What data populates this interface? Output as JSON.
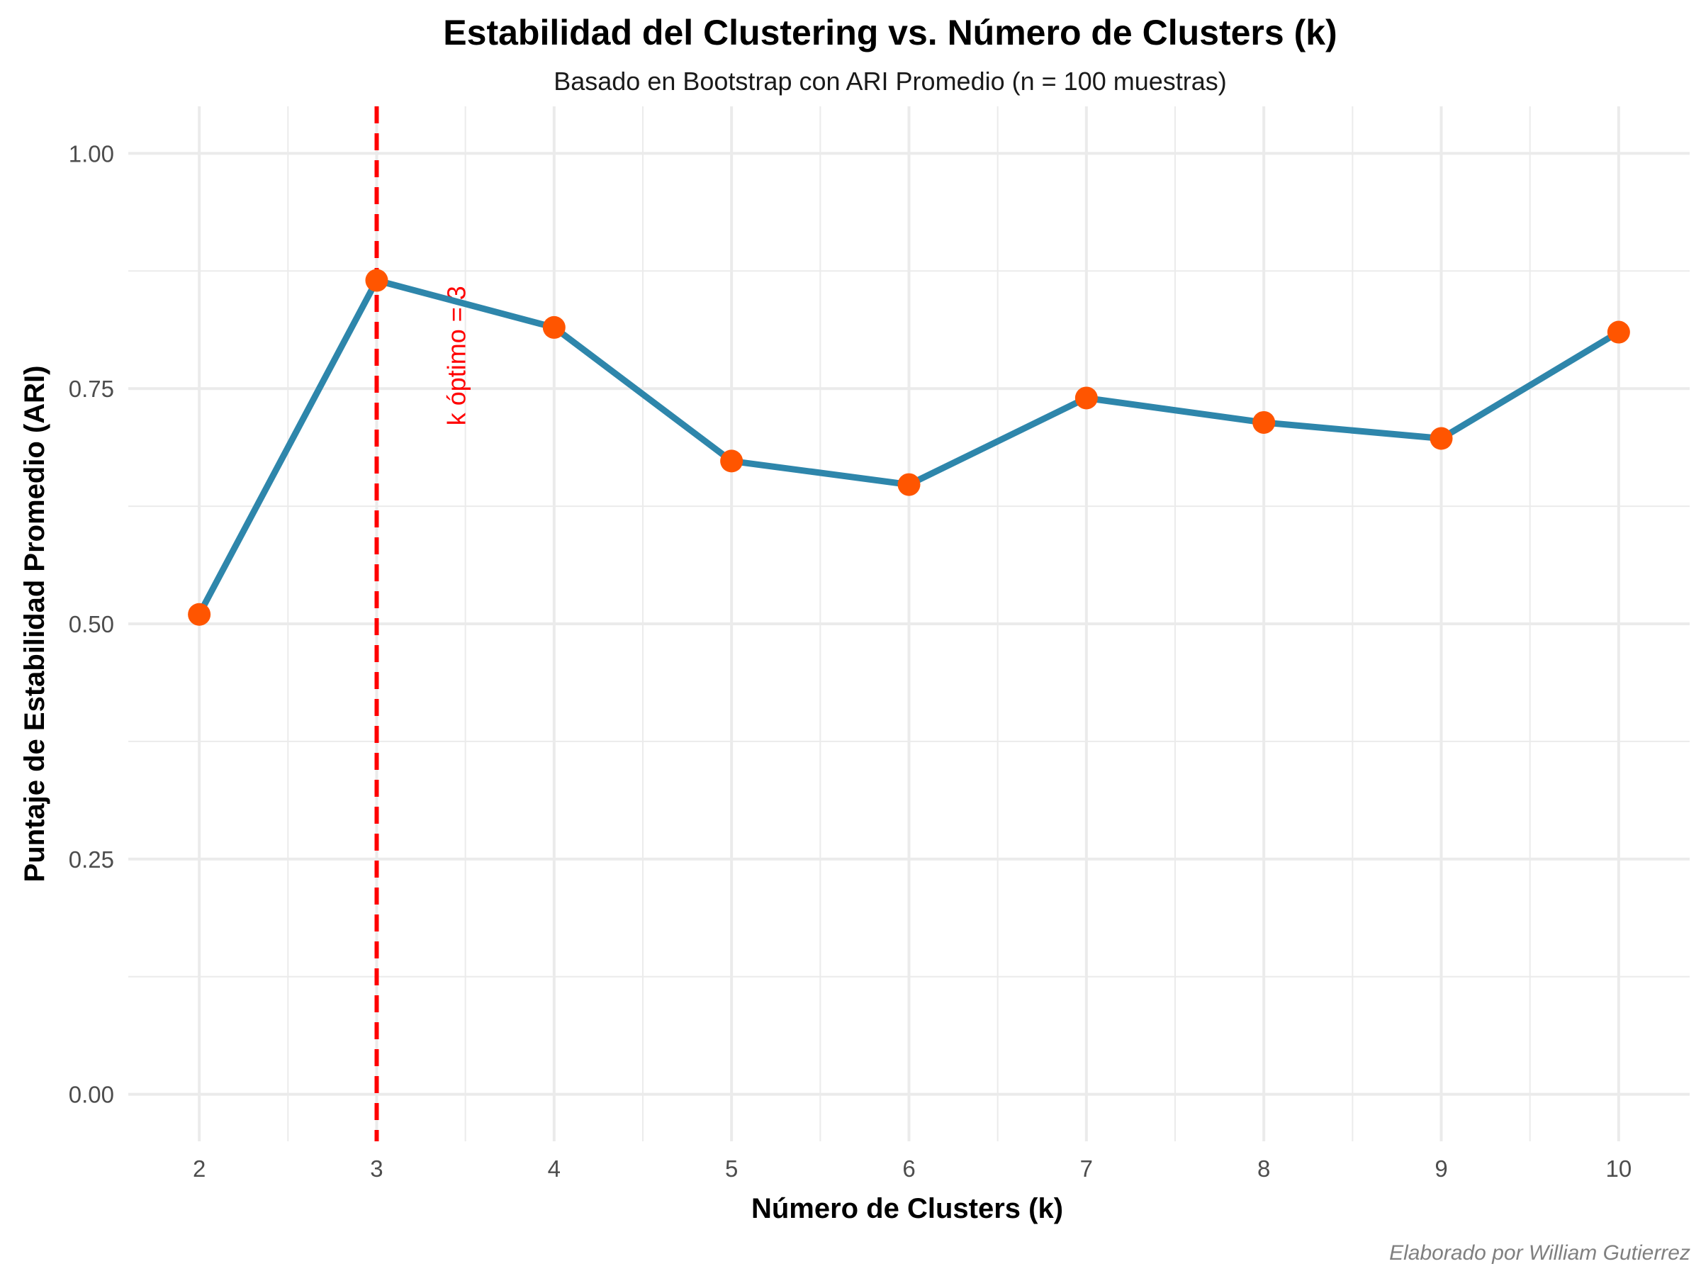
{
  "chart_data": {
    "type": "line",
    "title": "Estabilidad del Clustering vs. Número de Clusters (k)",
    "subtitle": "Basado en Bootstrap con ARI Promedio (n = 100 muestras)",
    "xlabel": "Número de Clusters (k)",
    "ylabel": "Puntaje de Estabilidad Promedio (ARI)",
    "caption": "Elaborado por William Gutierrez",
    "x": [
      2,
      3,
      4,
      5,
      6,
      7,
      8,
      9,
      10
    ],
    "series": [
      {
        "values": [
          0.51,
          0.865,
          0.815,
          0.673,
          0.648,
          0.74,
          0.714,
          0.697,
          0.81
        ]
      }
    ],
    "xlim": [
      1.6,
      10.4
    ],
    "ylim": [
      -0.05,
      1.05
    ],
    "x_ticks": [
      "2",
      "3",
      "4",
      "5",
      "6",
      "7",
      "8",
      "9",
      "10"
    ],
    "y_ticks": [
      "0.00",
      "0.25",
      "0.50",
      "0.75",
      "1.00"
    ],
    "y_tick_values": [
      0,
      0.25,
      0.5,
      0.75,
      1.0
    ],
    "vline": {
      "x": 3,
      "label": "k óptimo = 3",
      "color": "#ff0000"
    },
    "grid": true,
    "colors": {
      "line": "#2e86ab",
      "points": "#ff5500",
      "vline": "#ff0000",
      "grid": "#ebebeb"
    }
  }
}
